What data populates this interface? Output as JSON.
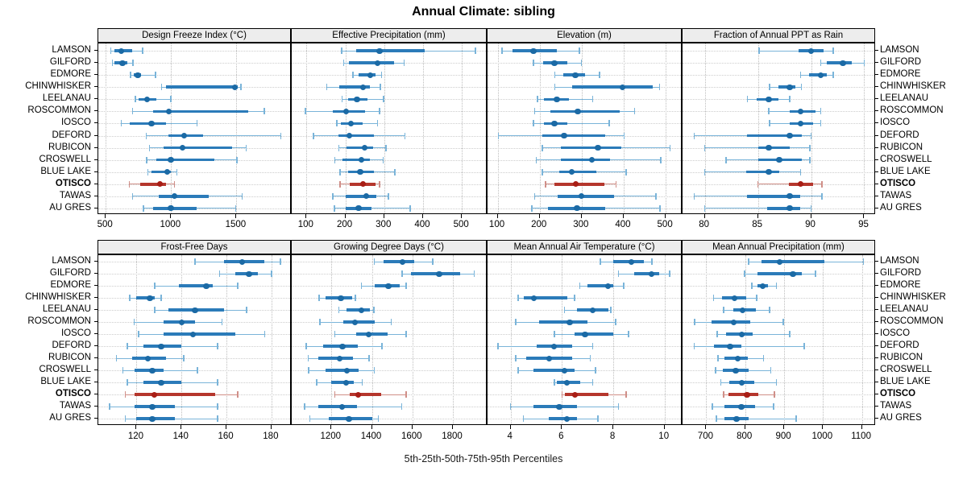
{
  "title": "Annual Climate: sibling",
  "caption": "5th-25th-50th-75th-95th Percentiles",
  "colors": {
    "normal_dot": "#1b6aa5",
    "normal_box": "#2b7bb9",
    "normal_light": "#7ab4d9",
    "highlight_dot": "#a81d15",
    "highlight_box": "#b5362c",
    "highlight_light": "#d08f88",
    "strip_bg": "#ededed",
    "grid": "#cdcdcd"
  },
  "chart_data": {
    "type": "dotplot",
    "subtype": "percentile-ranges",
    "orientation": "horizontal",
    "grid": "dotted",
    "layout": "2 rows x 4 cols",
    "percentiles": [
      5,
      25,
      50,
      75,
      95
    ],
    "categories": [
      "LAMSON",
      "GILFORD",
      "EDMORE",
      "CHINWHISKER",
      "LEELANAU",
      "ROSCOMMON",
      "IOSCO",
      "DEFORD",
      "RUBICON",
      "CROSWELL",
      "BLUE LAKE",
      "OTISCO",
      "TAWAS",
      "AU GRES"
    ],
    "highlighted_category": "OTISCO",
    "panels": [
      {
        "label": "Design Freeze Index (°C)",
        "ticks": [
          500,
          1000,
          1500
        ],
        "axis_range": [
          443,
          1923
        ],
        "values": {
          "LAMSON": [
            538,
            565,
            620,
            700,
            782
          ],
          "GILFORD": [
            550,
            568,
            628,
            663,
            710
          ],
          "EDMORE": [
            690,
            716,
            745,
            771,
            880
          ],
          "CHINWHISKER": [
            926,
            963,
            1487,
            1508,
            1533
          ],
          "LEELANAU": [
            726,
            751,
            815,
            890,
            998
          ],
          "ROSCOMMON": [
            706,
            860,
            983,
            1590,
            1714
          ],
          "IOSCO": [
            619,
            681,
            850,
            963,
            1199
          ],
          "DEFORD": [
            809,
            977,
            1101,
            1245,
            1841
          ],
          "RUBICON": [
            835,
            942,
            1086,
            1467,
            1574
          ],
          "CROSWELL": [
            813,
            890,
            998,
            1333,
            1504
          ],
          "BLUE LAKE": [
            823,
            850,
            969,
            995,
            1045
          ],
          "OTISCO": [
            681,
            765,
            915,
            962,
            1025
          ],
          "TAWAS": [
            706,
            905,
            1025,
            1290,
            1545
          ],
          "AU GRES": [
            788,
            865,
            998,
            1195,
            1495
          ]
        }
      },
      {
        "label": "Effective Precipitation (mm)",
        "ticks": [
          100,
          200,
          300,
          400,
          500
        ],
        "axis_range": [
          62,
          566
        ],
        "values": {
          "LAMSON": [
            190,
            228,
            288,
            404,
            535
          ],
          "GILFORD": [
            196,
            210,
            283,
            325,
            351
          ],
          "EDMORE": [
            220,
            234,
            264,
            278,
            293
          ],
          "CHINWHISKER": [
            152,
            185,
            245,
            264,
            290
          ],
          "LEELANAU": [
            192,
            207,
            230,
            257,
            298
          ],
          "ROSCOMMON": [
            97,
            168,
            202,
            250,
            288
          ],
          "IOSCO": [
            178,
            188,
            214,
            245,
            283
          ],
          "DEFORD": [
            118,
            183,
            210,
            273,
            353
          ],
          "RUBICON": [
            183,
            203,
            250,
            271,
            305
          ],
          "CROSWELL": [
            173,
            192,
            242,
            264,
            297
          ],
          "BLUE LAKE": [
            186,
            207,
            238,
            273,
            328
          ],
          "OTISCO": [
            187,
            212,
            245,
            278,
            288
          ],
          "TAWAS": [
            168,
            200,
            254,
            279,
            311
          ],
          "AU GRES": [
            172,
            200,
            234,
            267,
            367
          ]
        }
      },
      {
        "label": "Elevation (m)",
        "ticks": [
          100,
          200,
          300,
          400,
          500
        ],
        "axis_range": [
          76,
          540
        ],
        "values": {
          "LAMSON": [
            110,
            135,
            185,
            241,
            295
          ],
          "GILFORD": [
            185,
            208,
            235,
            265,
            299
          ],
          "EDMORE": [
            236,
            257,
            285,
            308,
            343
          ],
          "CHINWHISKER": [
            236,
            278,
            397,
            470,
            485
          ],
          "LEELANAU": [
            195,
            210,
            241,
            270,
            326
          ],
          "ROSCOMMON": [
            188,
            226,
            291,
            390,
            426
          ],
          "IOSCO": [
            185,
            210,
            235,
            266,
            366
          ],
          "DEFORD": [
            102,
            206,
            258,
            355,
            401
          ],
          "RUBICON": [
            206,
            251,
            339,
            395,
            510
          ],
          "CROSWELL": [
            192,
            251,
            324,
            368,
            488
          ],
          "BLUE LAKE": [
            206,
            246,
            276,
            334,
            406
          ],
          "OTISCO": [
            214,
            236,
            286,
            354,
            382
          ],
          "TAWAS": [
            188,
            242,
            299,
            377,
            477
          ],
          "AU GRES": [
            182,
            220,
            289,
            356,
            486
          ]
        }
      },
      {
        "label": "Fraction of Annual PPT as Rain",
        "ticks": [
          80,
          85,
          90,
          95
        ],
        "axis_range": [
          77.9,
          96.1
        ],
        "values": {
          "LAMSON": [
            85.1,
            88.8,
            90.0,
            91.2,
            92.1
          ],
          "GILFORD": [
            90.9,
            91.5,
            93.0,
            93.8,
            95.0
          ],
          "EDMORE": [
            89.0,
            89.8,
            90.9,
            91.5,
            92.1
          ],
          "CHINWHISKER": [
            86.1,
            86.9,
            88.0,
            88.5,
            89.1
          ],
          "LEELANAU": [
            84.0,
            84.9,
            86.0,
            86.9,
            88.0
          ],
          "ROSCOMMON": [
            86.0,
            88.0,
            89.0,
            90.4,
            90.9
          ],
          "IOSCO": [
            86.1,
            88.0,
            89.0,
            90.2,
            90.9
          ],
          "DEFORD": [
            79.0,
            84.0,
            88.0,
            89.1,
            90.0
          ],
          "RUBICON": [
            80.0,
            85.0,
            86.0,
            88.0,
            89.9
          ],
          "CROSWELL": [
            82.0,
            85.0,
            87.0,
            89.1,
            89.9
          ],
          "BLUE LAKE": [
            80.0,
            83.9,
            86.0,
            87.0,
            89.0
          ],
          "OTISCO": [
            85.0,
            87.9,
            89.0,
            90.2,
            91.0
          ],
          "TAWAS": [
            79.0,
            84.0,
            88.0,
            89.0,
            91.0
          ],
          "AU GRES": [
            80.0,
            85.9,
            88.0,
            89.0,
            90.0
          ]
        }
      },
      {
        "label": "Frost-Free Days",
        "ticks": [
          120,
          140,
          160,
          180
        ],
        "axis_range": [
          103,
          189
        ],
        "values": {
          "LAMSON": [
            146,
            159,
            167,
            177,
            184
          ],
          "GILFORD": [
            157,
            164,
            170,
            174,
            180
          ],
          "EDMORE": [
            128,
            139,
            151,
            154,
            165
          ],
          "CHINWHISKER": [
            117,
            120,
            126,
            128,
            131
          ],
          "LEELANAU": [
            128,
            134,
            146,
            159,
            169
          ],
          "ROSCOMMON": [
            119,
            132,
            140,
            146,
            158
          ],
          "IOSCO": [
            121,
            132,
            145,
            164,
            177
          ],
          "DEFORD": [
            116,
            123,
            131,
            140,
            156
          ],
          "RUBICON": [
            111,
            118,
            125,
            133,
            141
          ],
          "CROSWELL": [
            114,
            119,
            127,
            132,
            147
          ],
          "BLUE LAKE": [
            116,
            123,
            131,
            140,
            156
          ],
          "OTISCO": [
            115,
            119,
            128,
            155,
            165
          ],
          "TAWAS": [
            108,
            119,
            127,
            137,
            156
          ],
          "AU GRES": [
            115,
            120,
            127,
            137,
            156
          ]
        }
      },
      {
        "label": "Growing Degree Days (°C)",
        "ticks": [
          1200,
          1400,
          1600,
          1800
        ],
        "axis_range": [
          1004,
          1971
        ],
        "values": {
          "LAMSON": [
            1412,
            1458,
            1550,
            1610,
            1700
          ],
          "GILFORD": [
            1550,
            1594,
            1732,
            1835,
            1905
          ],
          "EDMORE": [
            1348,
            1412,
            1482,
            1537,
            1570
          ],
          "CHINWHISKER": [
            1140,
            1170,
            1246,
            1303,
            1319
          ],
          "LEELANAU": [
            1237,
            1273,
            1348,
            1392,
            1409
          ],
          "ROSCOMMON": [
            1144,
            1260,
            1316,
            1412,
            1495
          ],
          "IOSCO": [
            1217,
            1323,
            1385,
            1478,
            1570
          ],
          "DEFORD": [
            1075,
            1160,
            1255,
            1332,
            1450
          ],
          "RUBICON": [
            1085,
            1134,
            1242,
            1308,
            1385
          ],
          "CROSWELL": [
            1087,
            1171,
            1277,
            1336,
            1412
          ],
          "BLUE LAKE": [
            1127,
            1200,
            1273,
            1312,
            1352
          ],
          "OTISCO": [
            1217,
            1290,
            1332,
            1445,
            1568
          ],
          "TAWAS": [
            1068,
            1134,
            1253,
            1328,
            1548
          ],
          "AU GRES": [
            1094,
            1187,
            1286,
            1401,
            1431
          ]
        }
      },
      {
        "label": "Mean Annual Air Temperature (°C)",
        "ticks": [
          4,
          6,
          8,
          10
        ],
        "axis_range": [
          3.1,
          10.7
        ],
        "values": {
          "LAMSON": [
            7.5,
            8.0,
            8.7,
            9.2,
            9.5
          ],
          "GILFORD": [
            8.2,
            8.8,
            9.5,
            9.8,
            10.2
          ],
          "EDMORE": [
            6.7,
            7.0,
            7.8,
            8.0,
            8.4
          ],
          "CHINWHISKER": [
            4.3,
            4.5,
            4.9,
            6.2,
            6.5
          ],
          "LEELANAU": [
            6.1,
            6.6,
            7.2,
            7.8,
            7.9
          ],
          "ROSCOMMON": [
            4.2,
            5.1,
            6.3,
            7.0,
            8.1
          ],
          "IOSCO": [
            5.7,
            6.5,
            6.9,
            8.0,
            8.6
          ],
          "DEFORD": [
            3.5,
            5.0,
            5.7,
            6.4,
            7.2
          ],
          "RUBICON": [
            4.2,
            4.6,
            5.5,
            6.4,
            7.1
          ],
          "CROSWELL": [
            4.3,
            4.9,
            6.1,
            6.5,
            7.3
          ],
          "BLUE LAKE": [
            5.7,
            5.8,
            6.2,
            6.7,
            7.2
          ],
          "OTISCO": [
            6.0,
            6.1,
            6.5,
            7.8,
            8.5
          ],
          "TAWAS": [
            4.0,
            4.9,
            5.9,
            6.6,
            8.2
          ],
          "AU GRES": [
            4.5,
            5.5,
            6.2,
            6.6,
            7.4
          ]
        }
      },
      {
        "label": "Mean Annual Precipitation (mm)",
        "ticks": [
          700,
          800,
          900,
          1000,
          1100
        ],
        "axis_range": [
          639,
          1136
        ],
        "values": {
          "LAMSON": [
            809,
            841,
            888,
            1004,
            1104
          ],
          "GILFORD": [
            799,
            831,
            923,
            945,
            981
          ],
          "EDMORE": [
            817,
            831,
            845,
            859,
            880
          ],
          "CHINWHISKER": [
            719,
            740,
            772,
            803,
            829
          ],
          "LEELANAU": [
            745,
            769,
            793,
            828,
            863
          ],
          "ROSCOMMON": [
            670,
            714,
            771,
            812,
            898
          ],
          "IOSCO": [
            728,
            750,
            791,
            819,
            914
          ],
          "DEFORD": [
            669,
            719,
            761,
            790,
            952
          ],
          "RUBICON": [
            730,
            746,
            781,
            807,
            847
          ],
          "CROSWELL": [
            724,
            743,
            776,
            808,
            866
          ],
          "BLUE LAKE": [
            737,
            759,
            791,
            824,
            880
          ],
          "OTISCO": [
            745,
            757,
            805,
            833,
            875
          ],
          "TAWAS": [
            716,
            746,
            790,
            826,
            873
          ],
          "AU GRES": [
            726,
            746,
            778,
            809,
            931
          ]
        }
      }
    ]
  }
}
